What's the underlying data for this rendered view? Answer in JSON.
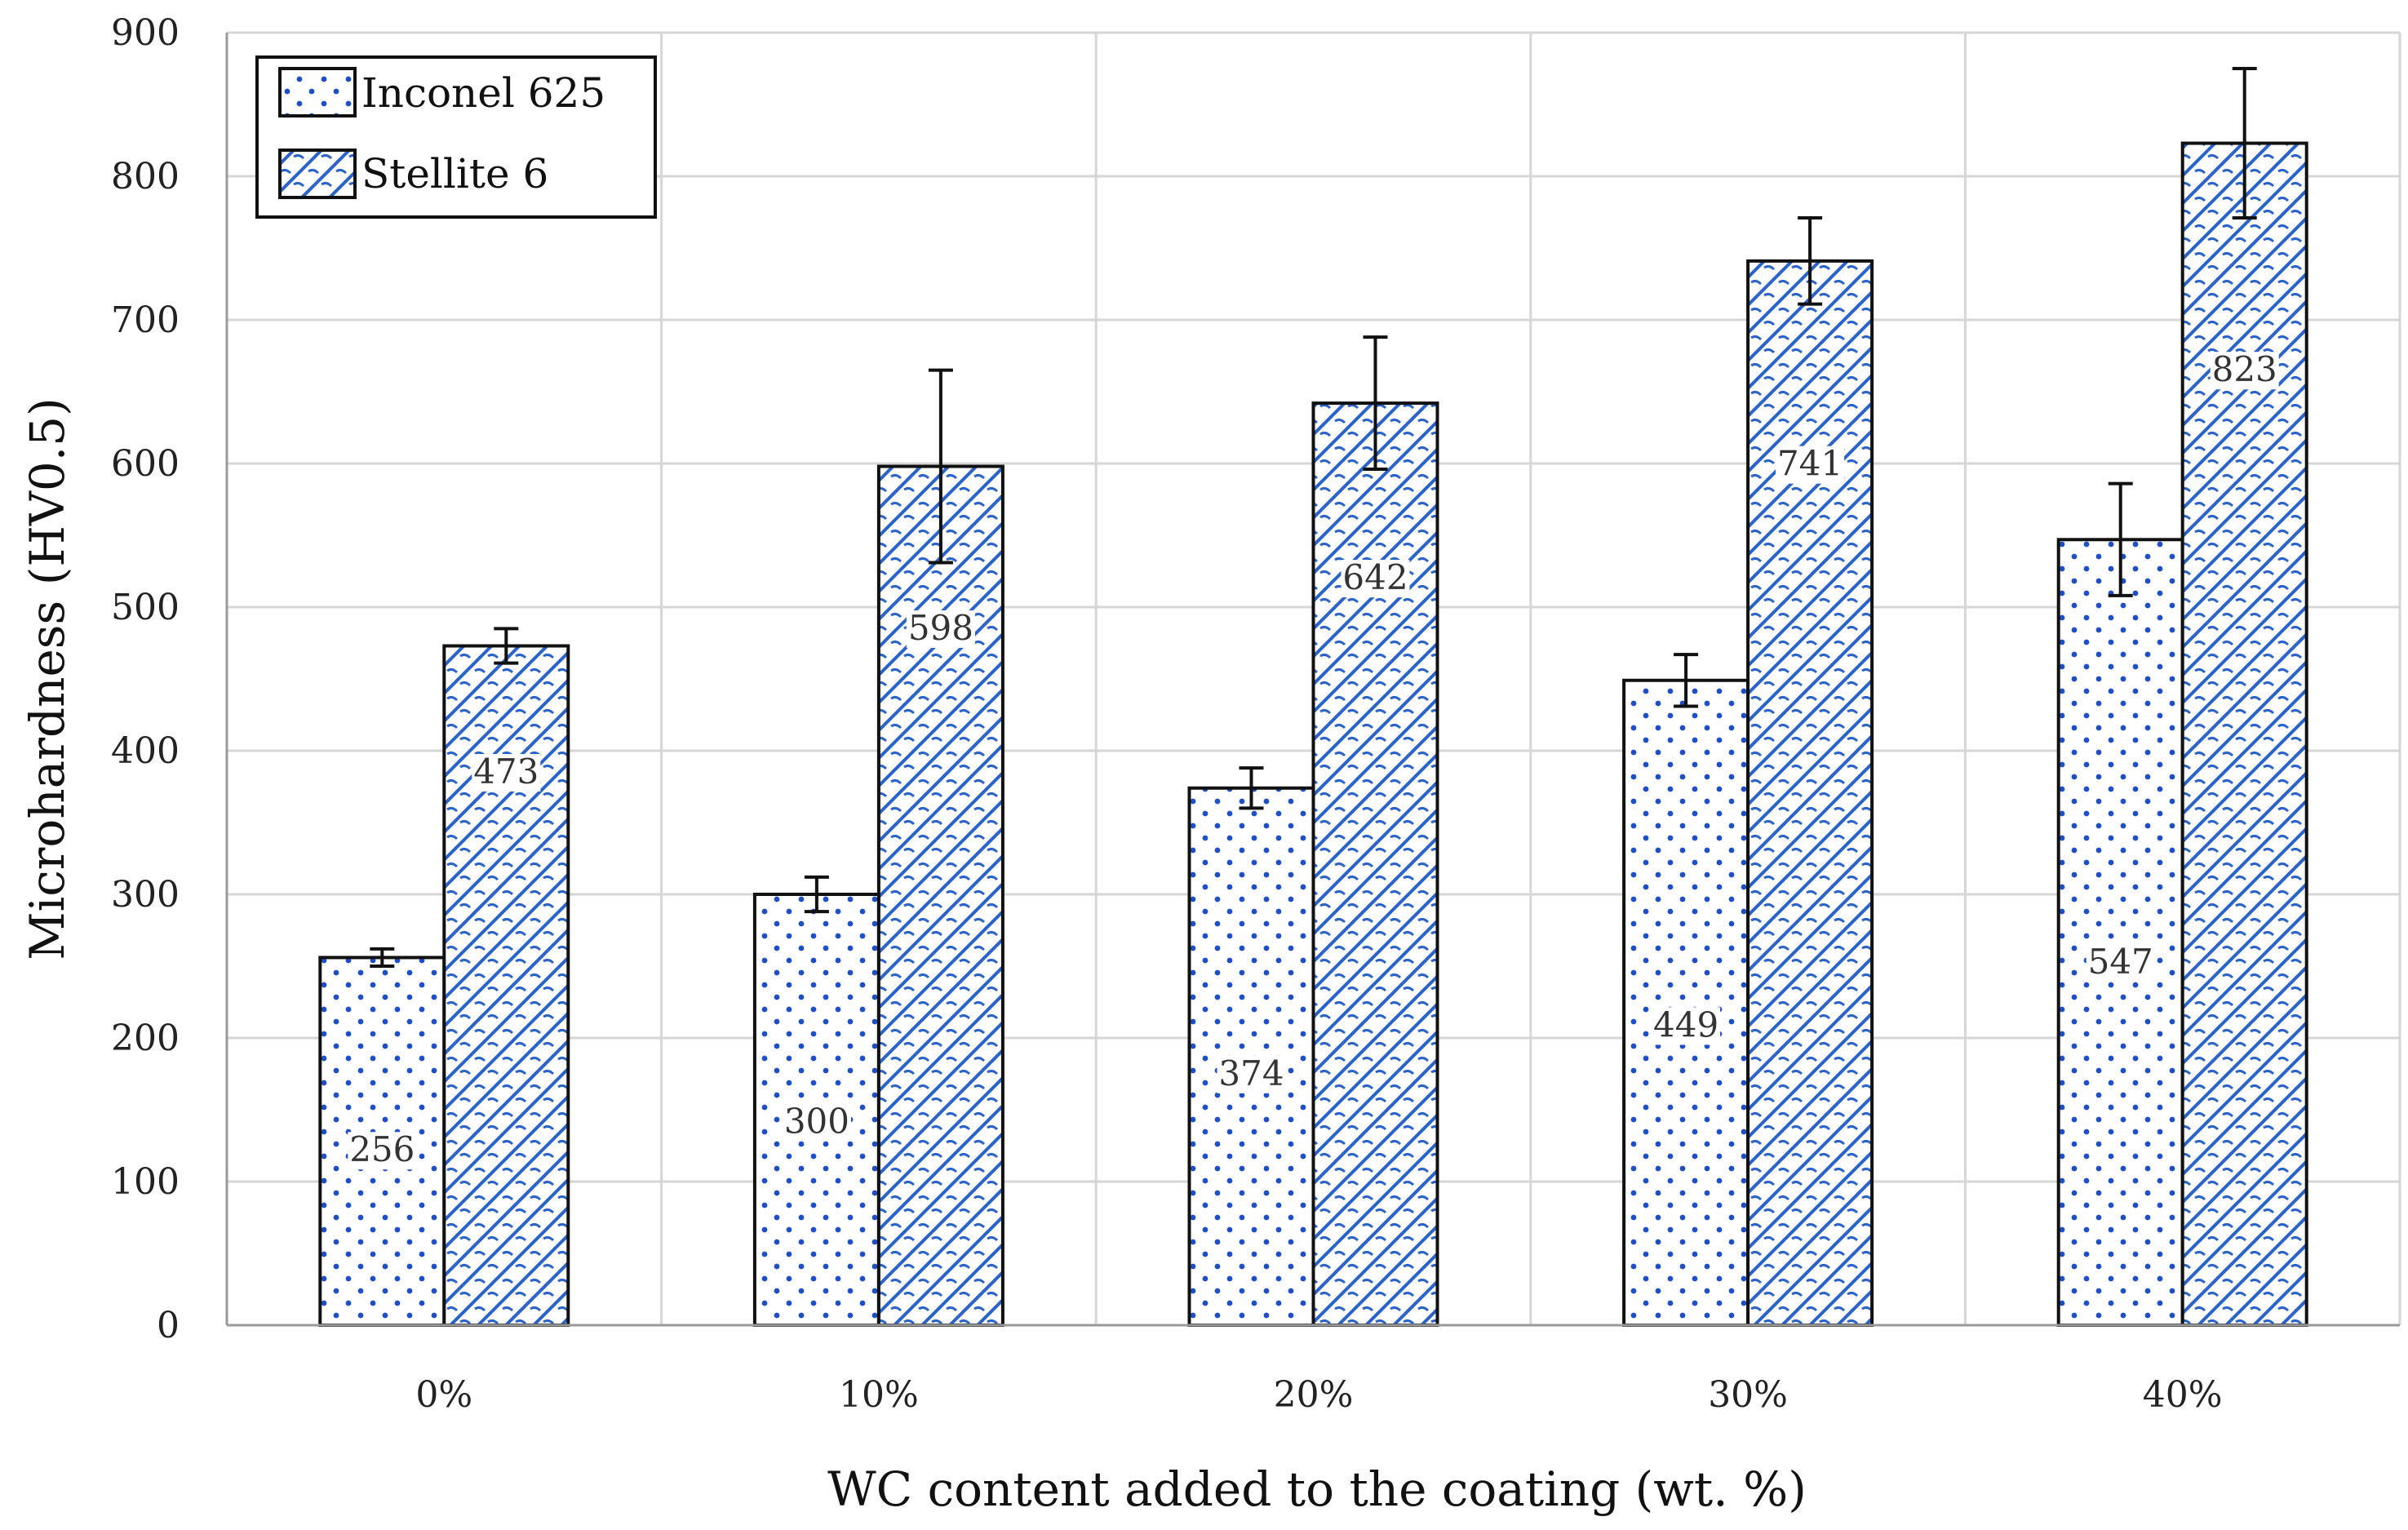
{
  "chart_data": {
    "type": "bar",
    "title": "",
    "xlabel": "WC content added to the coating (wt. %)",
    "ylabel": "Microhardness (HV0.5)",
    "ylim": [
      0,
      900
    ],
    "ytick_step": 100,
    "grid": true,
    "legend_position": "top-left",
    "categories": [
      "0%",
      "10%",
      "20%",
      "30%",
      "40%"
    ],
    "series": [
      {
        "name": "Inconel 625",
        "pattern": "dots",
        "color": "#1f4fc4",
        "values": [
          256,
          300,
          374,
          449,
          547
        ],
        "errors": [
          6,
          12,
          14,
          18,
          39
        ],
        "value_labels": [
          "256",
          "300",
          "374",
          "449",
          "547"
        ]
      },
      {
        "name": "Stellite 6",
        "pattern": "hatch",
        "color": "#2b63c7",
        "values": [
          473,
          598,
          642,
          741,
          823
        ],
        "errors": [
          12,
          67,
          46,
          30,
          52
        ],
        "value_labels": [
          "473",
          "598",
          "642",
          "741",
          "823"
        ]
      }
    ]
  }
}
